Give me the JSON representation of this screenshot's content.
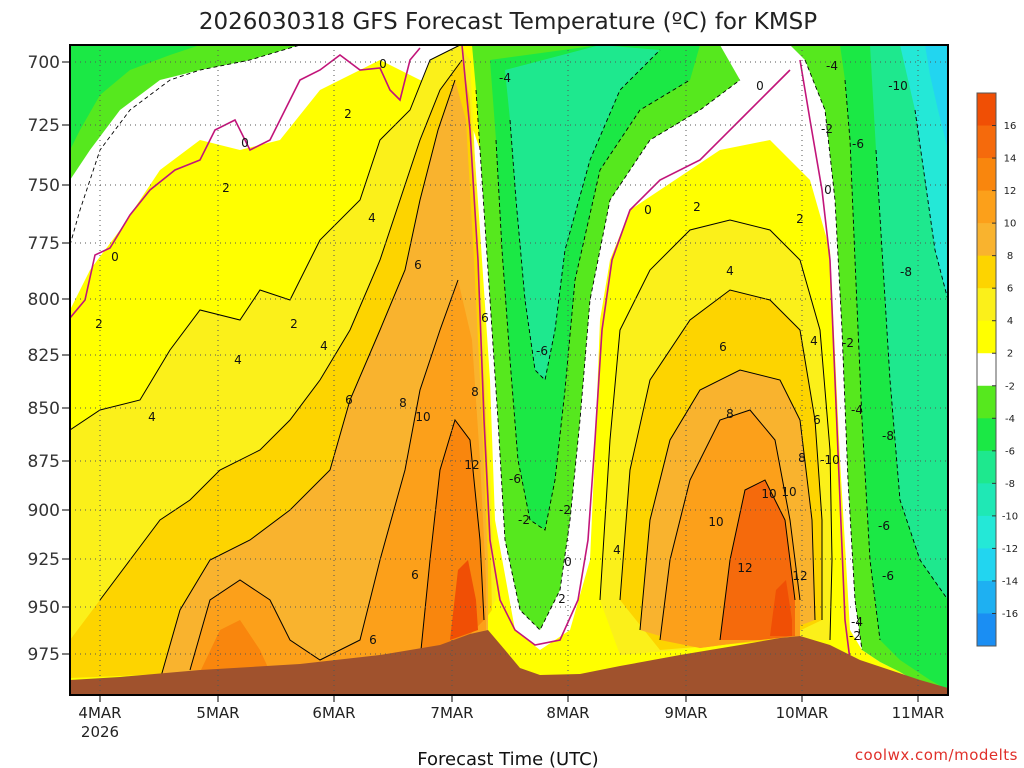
{
  "chart_data": {
    "type": "heatmap",
    "title": "2026030318 GFS Forecast Temperature (ºC) for KMSP",
    "xlabel": "Forecast Time (UTC)",
    "credit": "coolwx.com/modelts",
    "x_ticks": [
      "4MAR",
      "5MAR",
      "6MAR",
      "7MAR",
      "8MAR",
      "9MAR",
      "10MAR",
      "11MAR"
    ],
    "x_year": "2026",
    "y_ticks": [
      "700",
      "725",
      "750",
      "775",
      "800",
      "825",
      "850",
      "875",
      "900",
      "925",
      "950",
      "975"
    ],
    "y_range": [
      700,
      990
    ],
    "y_reversed": true,
    "grid": "on",
    "colorbar": {
      "labels": [
        "16",
        "14",
        "12",
        "10",
        "8",
        "6",
        "4",
        "2",
        "-2",
        "-4",
        "-6",
        "-8",
        "-10",
        "-12",
        "-14",
        "-16"
      ],
      "colors": [
        "#f04f05",
        "#f56a0c",
        "#f9860d",
        "#fca01a",
        "#f9b32e",
        "#fdd400",
        "#fbf01a",
        "#ffff00",
        "#ffffff",
        "#56e81e",
        "#1be845",
        "#1ee88e",
        "#1fe8b5",
        "#24e8d7",
        "#22d5f0",
        "#1eb0f2",
        "#1a8ef3"
      ]
    },
    "time_columns_hours": [
      0,
      12,
      24,
      36,
      48,
      60,
      72,
      84,
      96,
      108,
      120,
      132,
      144,
      156,
      168,
      180
    ],
    "temperature_profiles": [
      {
        "hour": 0,
        "p700": -3,
        "p750": -1,
        "p800": 1,
        "p850": 3,
        "p900": 3,
        "p950": 5,
        "p975": 5
      },
      {
        "hour": 12,
        "p700": -2,
        "p750": 0,
        "p800": 2,
        "p850": 3,
        "p900": 3,
        "p950": 4,
        "p975": 3
      },
      {
        "hour": 24,
        "p700": -1,
        "p750": 2,
        "p800": 3,
        "p850": 4,
        "p900": 5,
        "p950": 8,
        "p975": 6
      },
      {
        "hour": 36,
        "p700": 0,
        "p750": 2,
        "p800": 3,
        "p850": 4,
        "p900": 4,
        "p950": 5,
        "p975": 4
      },
      {
        "hour": 48,
        "p700": 0,
        "p750": 2,
        "p800": 3,
        "p850": 3,
        "p900": 4,
        "p950": 5,
        "p975": 4
      },
      {
        "hour": 60,
        "p700": 1,
        "p750": 3,
        "p800": 5,
        "p850": 6,
        "p900": 6,
        "p950": 7,
        "p975": 6
      },
      {
        "hour": 72,
        "p700": 2,
        "p750": 4,
        "p800": 6,
        "p850": 8,
        "p900": 9,
        "p950": 9,
        "p975": 8
      },
      {
        "hour": 84,
        "p700": 3,
        "p750": 5,
        "p800": 7,
        "p850": 9,
        "p900": 11,
        "p950": 13,
        "p975": 13
      },
      {
        "hour": 96,
        "p700": -5,
        "p750": -7,
        "p800": -6,
        "p850": -5,
        "p900": -3,
        "p950": -1,
        "p975": 0
      },
      {
        "hour": 108,
        "p700": -4,
        "p750": -3,
        "p800": -2,
        "p850": -1,
        "p900": 0,
        "p950": 2,
        "p975": 3
      },
      {
        "hour": 120,
        "p700": -2,
        "p750": 0,
        "p800": 2,
        "p850": 3,
        "p900": 5,
        "p950": 6,
        "p975": 7
      },
      {
        "hour": 132,
        "p700": -1,
        "p750": 1,
        "p800": 4,
        "p850": 7,
        "p900": 9,
        "p950": 11,
        "p975": 11
      },
      {
        "hour": 144,
        "p700": -4,
        "p750": -2,
        "p800": 2,
        "p850": 6,
        "p900": 10,
        "p950": 12,
        "p975": 11
      },
      {
        "hour": 156,
        "p700": -6,
        "p750": -6,
        "p800": -6,
        "p850": -5,
        "p900": -4,
        "p950": -3,
        "p975": -2
      },
      {
        "hour": 168,
        "p700": -10,
        "p750": -10,
        "p800": -9,
        "p850": -9,
        "p900": -8,
        "p950": -6,
        "p975": -4
      }
    ],
    "contour_labels": [
      "0",
      "0",
      "0",
      "0",
      "0",
      "0",
      "0",
      "2",
      "2",
      "2",
      "2",
      "2",
      "2",
      "2",
      "4",
      "4",
      "4",
      "4",
      "4",
      "4",
      "4",
      "6",
      "6",
      "6",
      "6",
      "6",
      "6",
      "6",
      "8",
      "8",
      "8",
      "8",
      "10",
      "10",
      "10",
      "10",
      "12",
      "12",
      "12",
      "-2",
      "-2",
      "-2",
      "-2",
      "-2",
      "-4",
      "-4",
      "-4",
      "-4",
      "-6",
      "-6",
      "-6",
      "-6",
      "-6",
      "-8",
      "-8",
      "-10",
      "-10"
    ]
  }
}
